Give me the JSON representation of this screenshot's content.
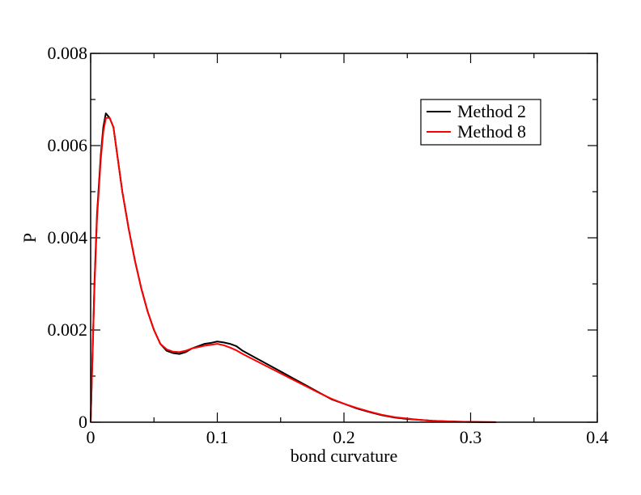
{
  "chart_data": {
    "type": "line",
    "title": "",
    "xlabel": "bond curvature",
    "ylabel": "P",
    "xlim": [
      0,
      0.4
    ],
    "ylim": [
      0,
      0.008
    ],
    "x_ticks": [
      0,
      0.1,
      0.2,
      0.3,
      0.4
    ],
    "x_tick_labels": [
      "0",
      "0.1",
      "0.2",
      "0.3",
      "0.4"
    ],
    "y_ticks": [
      0,
      0.002,
      0.004,
      0.006,
      0.008
    ],
    "y_tick_labels": [
      "0",
      "0.002",
      "0.004",
      "0.006",
      "0.008"
    ],
    "grid": false,
    "legend_position": "top-right",
    "series": [
      {
        "name": "Method 2",
        "color": "#000000",
        "x": [
          0,
          0.003,
          0.005,
          0.008,
          0.01,
          0.012,
          0.015,
          0.018,
          0.02,
          0.025,
          0.03,
          0.035,
          0.04,
          0.045,
          0.05,
          0.055,
          0.06,
          0.065,
          0.07,
          0.075,
          0.08,
          0.085,
          0.09,
          0.095,
          0.1,
          0.105,
          0.11,
          0.115,
          0.12,
          0.13,
          0.14,
          0.15,
          0.16,
          0.17,
          0.18,
          0.19,
          0.2,
          0.21,
          0.22,
          0.23,
          0.24,
          0.25,
          0.26,
          0.27,
          0.28,
          0.29,
          0.3,
          0.31,
          0.32
        ],
        "y": [
          0,
          0.003,
          0.0045,
          0.0058,
          0.0064,
          0.0067,
          0.0066,
          0.0064,
          0.006,
          0.005,
          0.0042,
          0.0035,
          0.0029,
          0.0024,
          0.002,
          0.0017,
          0.00155,
          0.0015,
          0.00148,
          0.00152,
          0.0016,
          0.00165,
          0.0017,
          0.00172,
          0.00175,
          0.00173,
          0.0017,
          0.00165,
          0.00155,
          0.0014,
          0.00125,
          0.0011,
          0.00095,
          0.0008,
          0.00065,
          0.0005,
          0.0004,
          0.0003,
          0.00022,
          0.00015,
          0.0001,
          7e-05,
          5e-05,
          3e-05,
          2e-05,
          1e-05,
          6e-06,
          3e-06,
          1e-06
        ]
      },
      {
        "name": "Method 8",
        "color": "#ff0000",
        "x": [
          0,
          0.003,
          0.005,
          0.008,
          0.01,
          0.012,
          0.015,
          0.018,
          0.02,
          0.025,
          0.03,
          0.035,
          0.04,
          0.045,
          0.05,
          0.055,
          0.06,
          0.065,
          0.07,
          0.075,
          0.08,
          0.085,
          0.09,
          0.095,
          0.1,
          0.105,
          0.11,
          0.115,
          0.12,
          0.13,
          0.14,
          0.15,
          0.16,
          0.17,
          0.18,
          0.19,
          0.2,
          0.21,
          0.22,
          0.23,
          0.24,
          0.25,
          0.26,
          0.27,
          0.28,
          0.29,
          0.3,
          0.31,
          0.32
        ],
        "y": [
          0,
          0.0029,
          0.0044,
          0.0057,
          0.0063,
          0.0066,
          0.0066,
          0.0064,
          0.006,
          0.005,
          0.0042,
          0.0035,
          0.0029,
          0.0024,
          0.002,
          0.0017,
          0.00158,
          0.00153,
          0.00152,
          0.00155,
          0.0016,
          0.00163,
          0.00166,
          0.00168,
          0.0017,
          0.00167,
          0.00162,
          0.00156,
          0.00148,
          0.00134,
          0.0012,
          0.00106,
          0.00092,
          0.00078,
          0.00064,
          0.00051,
          0.0004,
          0.00031,
          0.00023,
          0.00016,
          0.00011,
          8e-05,
          5e-05,
          3e-05,
          2e-05,
          1.2e-05,
          7e-06,
          4e-06,
          2e-06
        ]
      }
    ]
  }
}
